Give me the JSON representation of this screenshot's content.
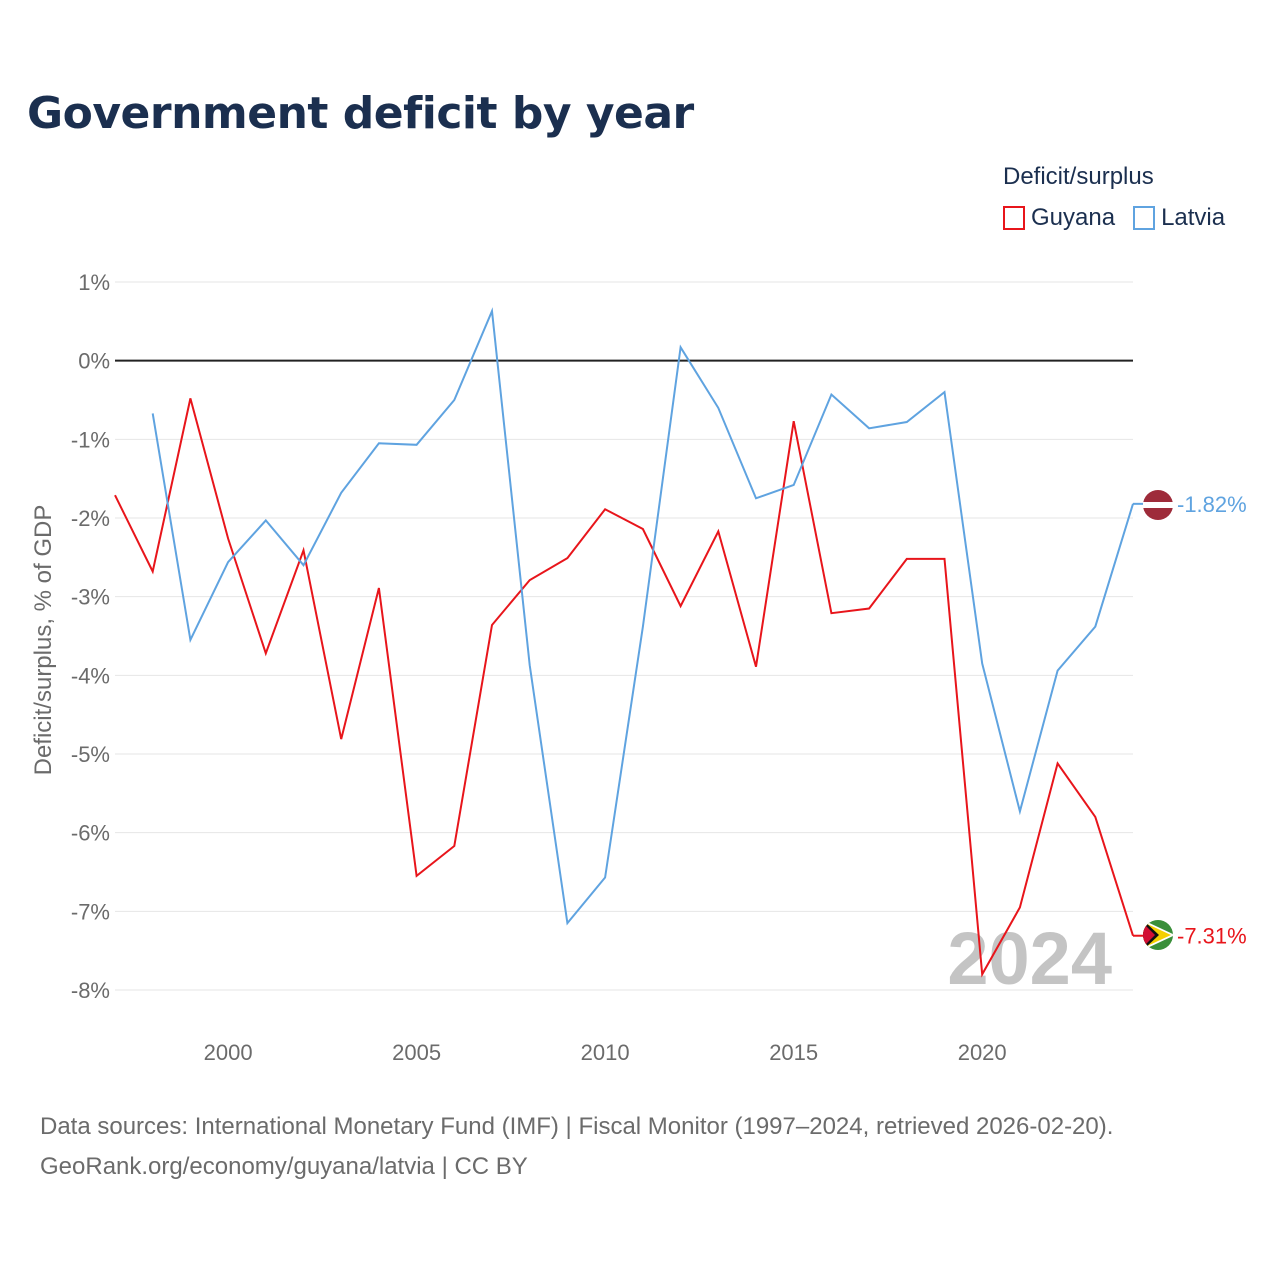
{
  "title": "Government deficit by year",
  "legend": {
    "title": "Deficit/surplus",
    "items": [
      {
        "label": "Guyana",
        "color": "#e8151b"
      },
      {
        "label": "Latvia",
        "color": "#5fa3e0"
      }
    ]
  },
  "source": {
    "line1": "Data sources: International Monetary Fund (IMF) | Fiscal Monitor (1997–2024, retrieved 2026-02-20).",
    "line2": "GeoRank.org/economy/guyana/latvia | CC BY"
  },
  "chart_data": {
    "type": "line",
    "title": "Government deficit by year",
    "xlabel": "",
    "ylabel": "Deficit/surplus, % of GDP",
    "xlim": [
      1997,
      2024
    ],
    "ylim": [
      -8,
      1
    ],
    "yticks": [
      1,
      0,
      -1,
      -2,
      -3,
      -4,
      -5,
      -6,
      -7,
      -8
    ],
    "ytick_labels": [
      "1%",
      "0%",
      "-1%",
      "-2%",
      "-3%",
      "-4%",
      "-5%",
      "-6%",
      "-7%",
      "-8%"
    ],
    "xticks": [
      2000,
      2005,
      2010,
      2015,
      2020
    ],
    "xtick_labels": [
      "2000",
      "2005",
      "2010",
      "2015",
      "2020"
    ],
    "year_watermark": "2024",
    "series": [
      {
        "name": "Guyana",
        "color": "#e8151b",
        "end_label": "-7.31%",
        "flag": "guyana-flag",
        "x": [
          1997,
          1998,
          1999,
          2000,
          2001,
          2002,
          2003,
          2004,
          2005,
          2006,
          2007,
          2008,
          2009,
          2010,
          2011,
          2012,
          2013,
          2014,
          2015,
          2016,
          2017,
          2018,
          2019,
          2020,
          2021,
          2022,
          2023,
          2024
        ],
        "values": [
          -1.71,
          -2.68,
          -0.48,
          -2.26,
          -3.72,
          -2.41,
          -4.81,
          -2.89,
          -6.55,
          -6.17,
          -3.36,
          -2.79,
          -2.51,
          -1.89,
          -2.14,
          -3.12,
          -2.17,
          -3.89,
          -0.77,
          -3.21,
          -3.15,
          -2.52,
          -2.52,
          -7.8,
          -6.95,
          -5.12,
          -5.8,
          -7.31
        ]
      },
      {
        "name": "Latvia",
        "color": "#5fa3e0",
        "end_label": "-1.82%",
        "flag": "latvia-flag",
        "x": [
          1998,
          1999,
          2000,
          2001,
          2002,
          2003,
          2004,
          2005,
          2006,
          2007,
          2008,
          2009,
          2010,
          2011,
          2012,
          2013,
          2014,
          2015,
          2016,
          2017,
          2018,
          2019,
          2020,
          2021,
          2022,
          2023,
          2024
        ],
        "values": [
          -0.67,
          -3.55,
          -2.56,
          -2.03,
          -2.6,
          -1.68,
          -1.05,
          -1.07,
          -0.5,
          0.63,
          -3.87,
          -7.15,
          -6.57,
          -3.38,
          0.17,
          -0.6,
          -1.75,
          -1.58,
          -0.43,
          -0.86,
          -0.78,
          -0.4,
          -3.85,
          -5.73,
          -3.94,
          -3.38,
          -1.82
        ]
      }
    ]
  }
}
